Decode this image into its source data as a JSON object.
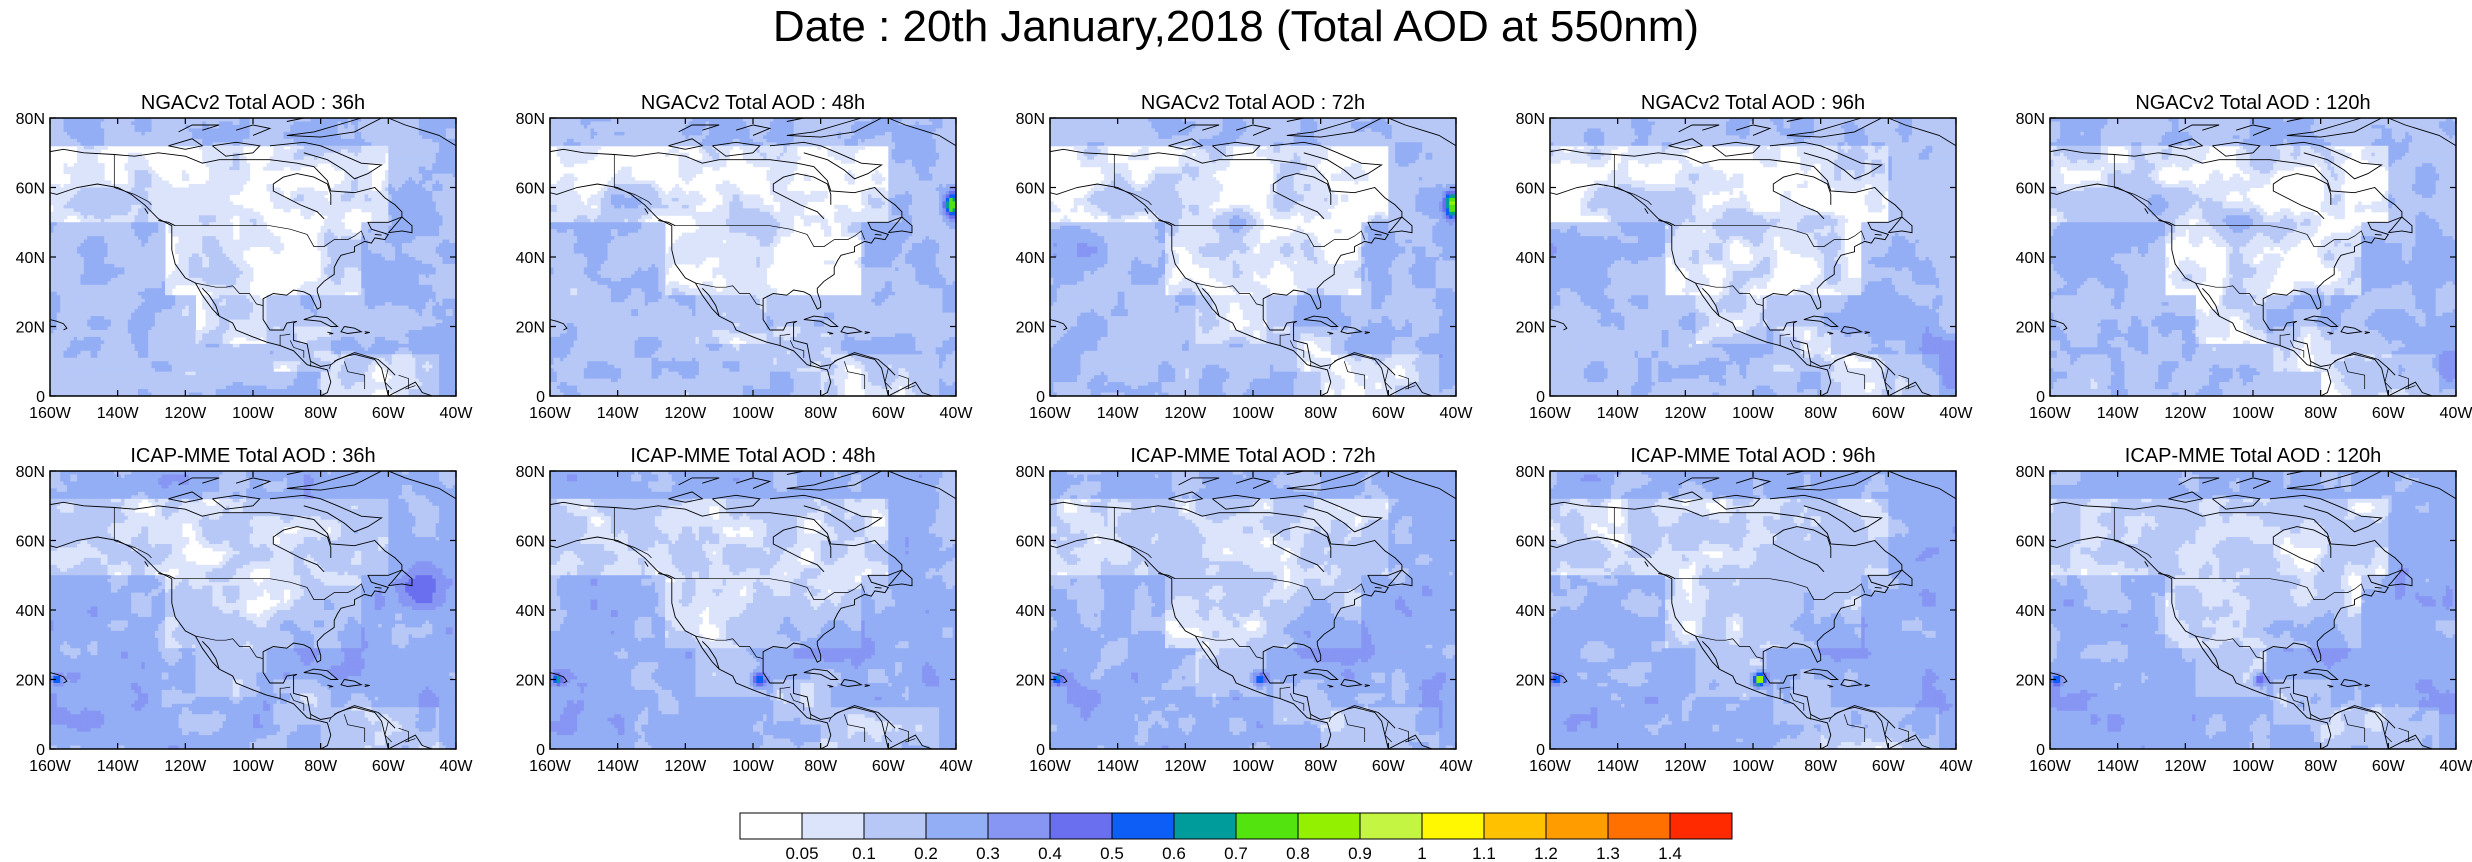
{
  "title": "Date : 20th January,2018 (Total AOD at 550nm)",
  "rows": [
    {
      "model": "NGACv2",
      "panels": [
        {
          "title": "NGACv2 Total AOD : 36h",
          "lead": "36h"
        },
        {
          "title": "NGACv2 Total AOD : 48h",
          "lead": "48h"
        },
        {
          "title": "NGACv2 Total AOD : 72h",
          "lead": "72h"
        },
        {
          "title": "NGACv2 Total AOD : 96h",
          "lead": "96h"
        },
        {
          "title": "NGACv2 Total AOD : 120h",
          "lead": "120h"
        }
      ]
    },
    {
      "model": "ICAP-MME",
      "panels": [
        {
          "title": "ICAP-MME Total AOD : 36h",
          "lead": "36h"
        },
        {
          "title": "ICAP-MME Total AOD : 48h",
          "lead": "48h"
        },
        {
          "title": "ICAP-MME Total AOD : 72h",
          "lead": "72h"
        },
        {
          "title": "ICAP-MME Total AOD : 96h",
          "lead": "96h"
        },
        {
          "title": "ICAP-MME Total AOD : 120h",
          "lead": "120h"
        }
      ]
    }
  ],
  "axes": {
    "lon_range": [
      -160,
      -40
    ],
    "lat_range": [
      0,
      80
    ],
    "lon_ticks": [
      "160W",
      "140W",
      "120W",
      "100W",
      "80W",
      "60W",
      "40W"
    ],
    "lat_ticks": [
      "80N",
      "60N",
      "40N",
      "20N",
      "0"
    ]
  },
  "colorbar": {
    "colors": [
      "#ffffff",
      "#dbe4fb",
      "#b7c8f7",
      "#93aef4",
      "#8795f3",
      "#6a6ff0",
      "#0d5ef7",
      "#009b9b",
      "#53e40f",
      "#92f000",
      "#c4f543",
      "#fff800",
      "#ffc100",
      "#ff9c00",
      "#ff7000",
      "#ff2a00"
    ],
    "labels": [
      "0.05",
      "0.1",
      "0.2",
      "0.3",
      "0.4",
      "0.5",
      "0.6",
      "0.7",
      "0.8",
      "0.9",
      "1",
      "1.1",
      "1.2",
      "1.3",
      "1.4"
    ]
  }
}
